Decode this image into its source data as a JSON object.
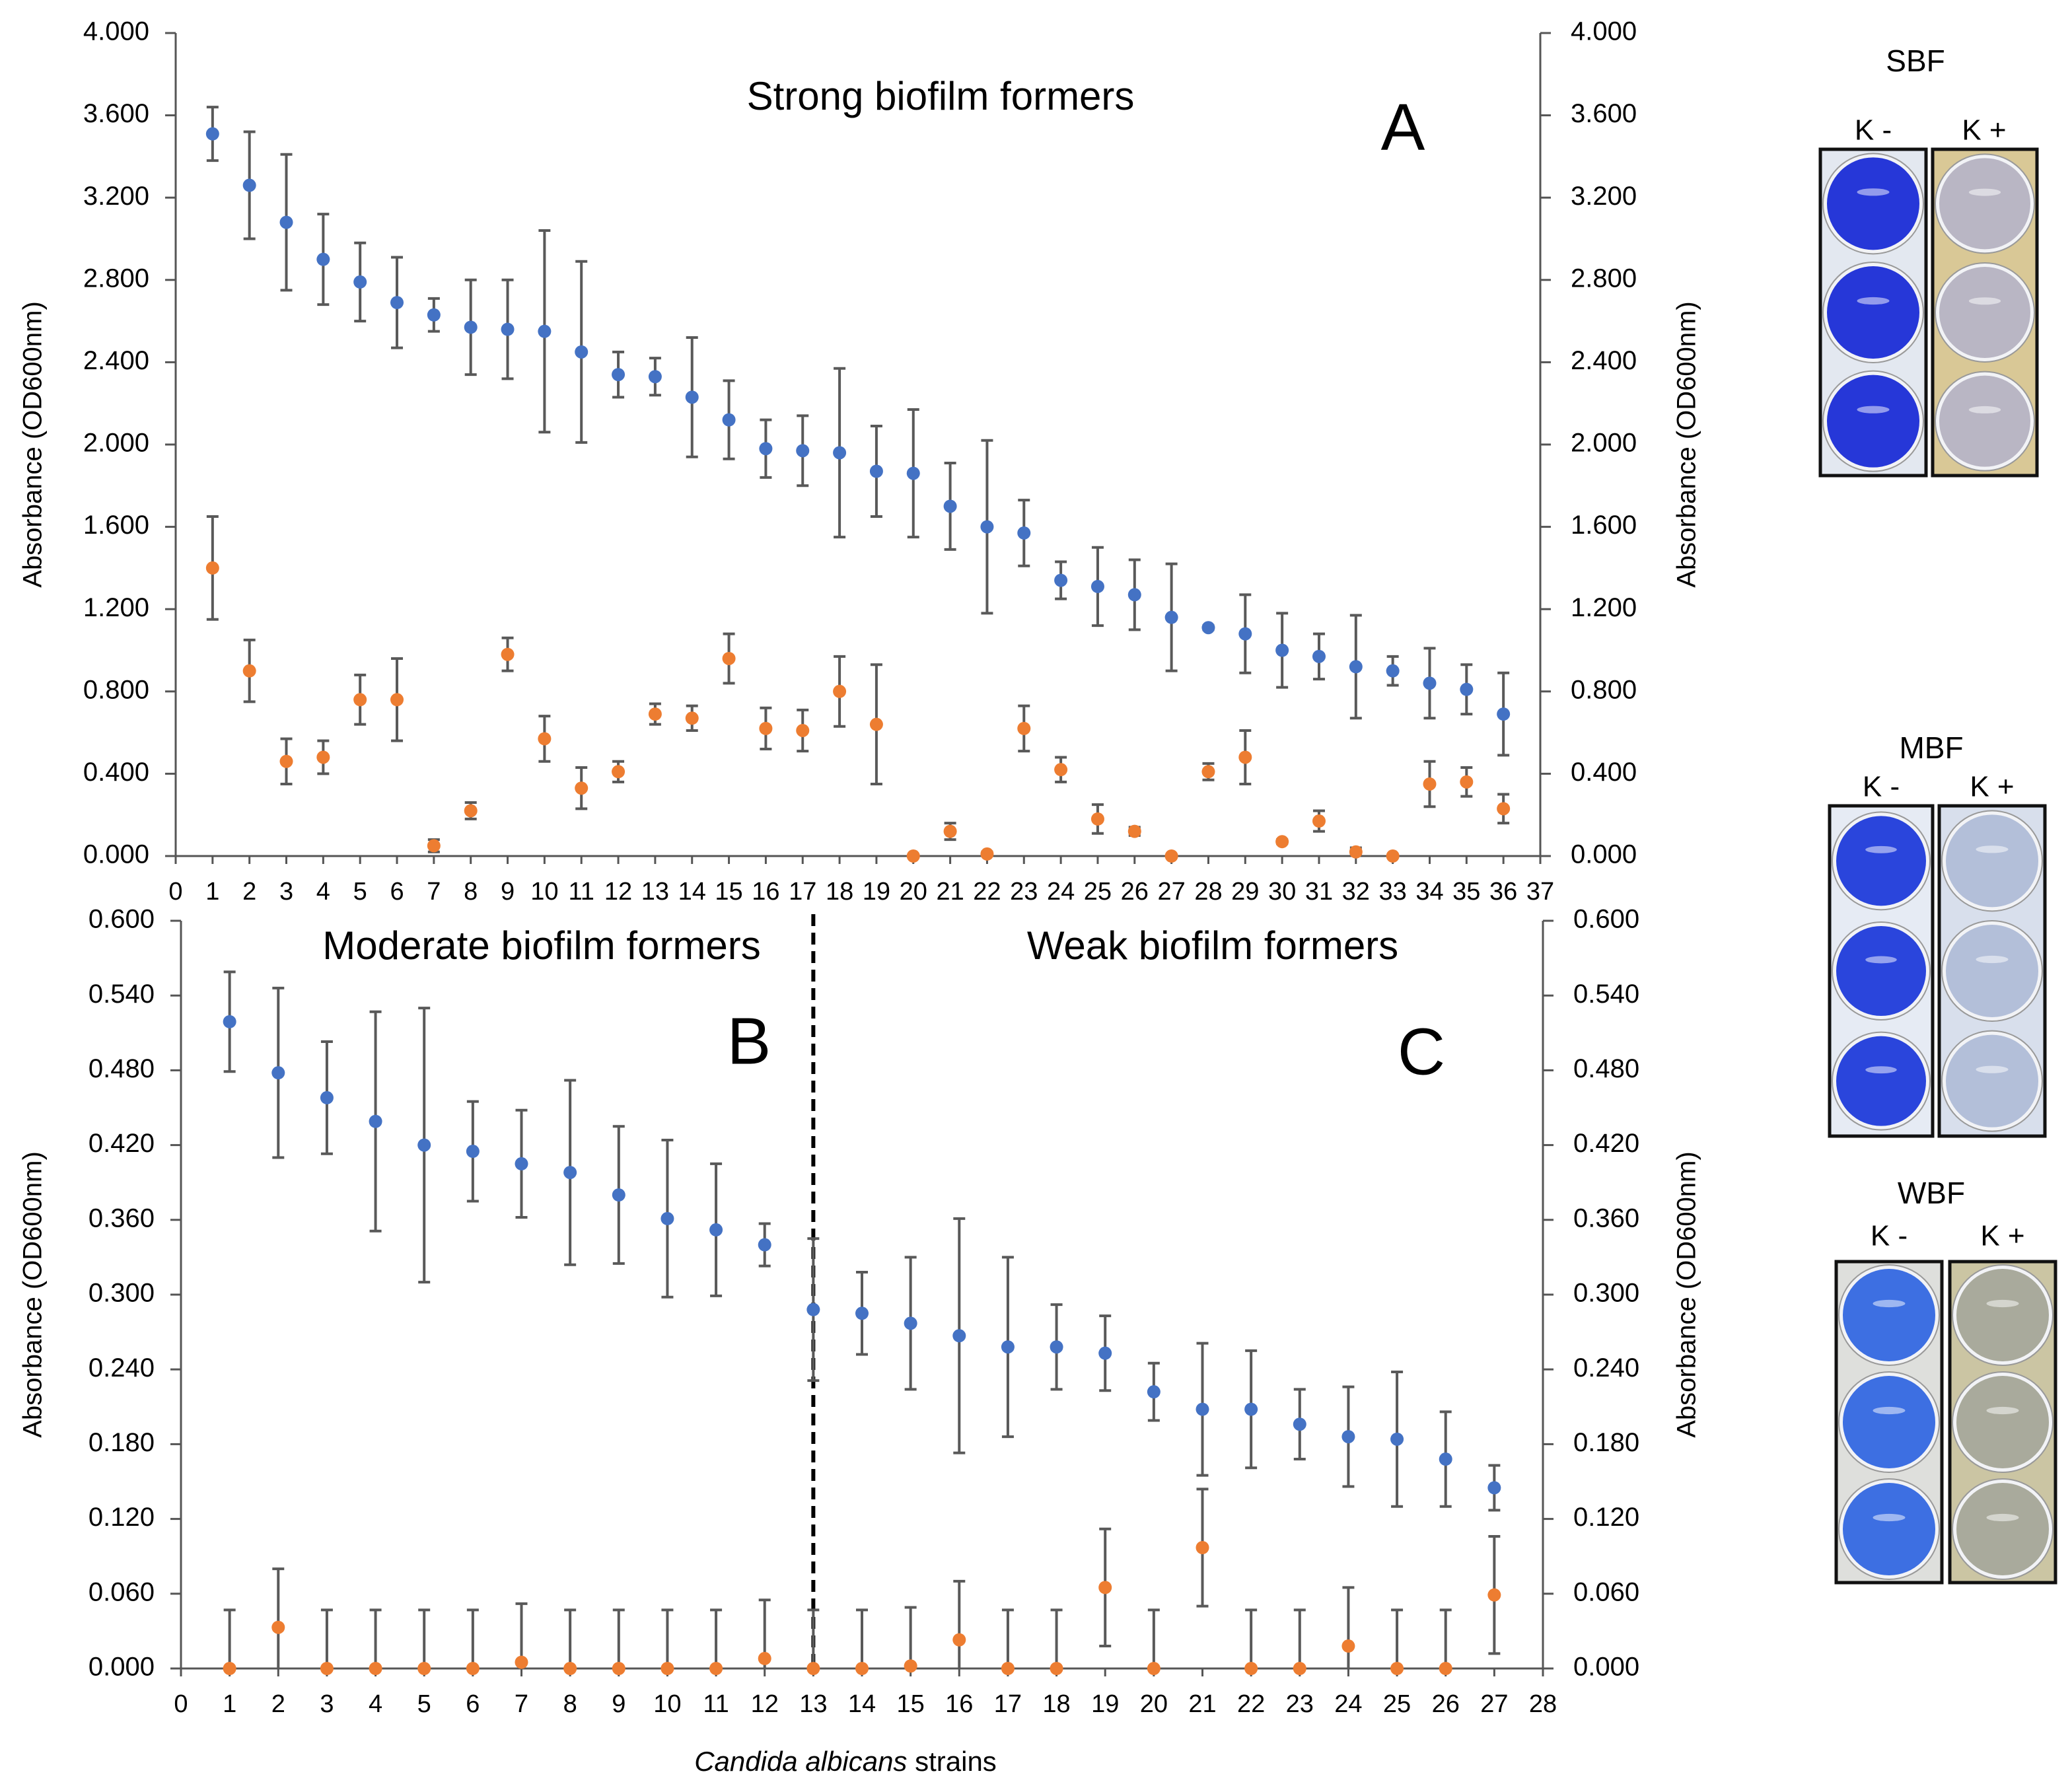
{
  "chart_data": [
    {
      "type": "scatter",
      "annotations": [
        "Strong biofilm formers",
        "A"
      ],
      "y_label": "Absorbance (OD600nm)",
      "y2_label": "Absorbance (OD600nm)",
      "x": [
        1,
        2,
        3,
        4,
        5,
        6,
        7,
        8,
        9,
        10,
        11,
        12,
        13,
        14,
        15,
        16,
        17,
        18,
        19,
        20,
        21,
        22,
        23,
        24,
        25,
        26,
        27,
        28,
        29,
        30,
        31,
        32,
        33,
        34,
        35,
        36
      ],
      "xlim": [
        0,
        37
      ],
      "xticks": [
        0,
        1,
        2,
        3,
        4,
        5,
        6,
        7,
        8,
        9,
        10,
        11,
        12,
        13,
        14,
        15,
        16,
        17,
        18,
        19,
        20,
        21,
        22,
        23,
        24,
        25,
        26,
        27,
        28,
        29,
        30,
        31,
        32,
        33,
        34,
        35,
        36,
        37
      ],
      "ylim": [
        0,
        4
      ],
      "yticks": [
        {
          "value": 0,
          "label": "0.000"
        },
        {
          "value": 0.4,
          "label": "0.400"
        },
        {
          "value": 0.8,
          "label": "0.800"
        },
        {
          "value": 1.2,
          "label": "1.200"
        },
        {
          "value": 1.6,
          "label": "1.600"
        },
        {
          "value": 2,
          "label": "2.000"
        },
        {
          "value": 2.4,
          "label": "2.400"
        },
        {
          "value": 2.8,
          "label": "2.800"
        },
        {
          "value": 3.2,
          "label": "3.200"
        },
        {
          "value": 3.6,
          "label": "3.600"
        },
        {
          "value": 4,
          "label": "4.000"
        }
      ],
      "y2lim": [
        0,
        4
      ],
      "y2ticks": [
        {
          "value": 0,
          "label": "0.000"
        },
        {
          "value": 0.4,
          "label": "0.400"
        },
        {
          "value": 0.8,
          "label": "0.800"
        },
        {
          "value": 1.2,
          "label": "1.200"
        },
        {
          "value": 1.6,
          "label": "1.600"
        },
        {
          "value": 2,
          "label": "2.000"
        },
        {
          "value": 2.4,
          "label": "2.400"
        },
        {
          "value": 2.8,
          "label": "2.800"
        },
        {
          "value": 3.2,
          "label": "3.200"
        },
        {
          "value": 3.6,
          "label": "3.600"
        },
        {
          "value": 4,
          "label": "4.000"
        }
      ],
      "series": [
        {
          "color": "#4472c4",
          "values": [
            3.51,
            3.26,
            3.08,
            2.9,
            2.79,
            2.69,
            2.63,
            2.57,
            2.56,
            2.55,
            2.45,
            2.34,
            2.33,
            2.23,
            2.12,
            1.98,
            1.97,
            1.96,
            1.87,
            1.86,
            1.7,
            1.6,
            1.57,
            1.34,
            1.31,
            1.27,
            1.16,
            1.11,
            1.08,
            1.0,
            0.97,
            0.92,
            0.9,
            0.84,
            0.81,
            0.69
          ],
          "errors": [
            0.13,
            0.26,
            0.33,
            0.22,
            0.19,
            0.22,
            0.08,
            0.23,
            0.24,
            0.49,
            0.44,
            0.11,
            0.09,
            0.29,
            0.19,
            0.14,
            0.17,
            0.41,
            0.22,
            0.31,
            0.21,
            0.42,
            0.16,
            0.09,
            0.19,
            0.17,
            0.26,
            0.01,
            0.19,
            0.18,
            0.11,
            0.25,
            0.07,
            0.17,
            0.12,
            0.2
          ]
        },
        {
          "color": "#ed7d31",
          "values": [
            1.4,
            0.9,
            0.46,
            0.48,
            0.76,
            0.76,
            0.05,
            0.22,
            0.98,
            0.57,
            0.33,
            0.41,
            0.69,
            0.67,
            0.96,
            0.62,
            0.61,
            0.8,
            0.64,
            0,
            0.12,
            0.01,
            0.62,
            0.42,
            0.18,
            0.12,
            0,
            0.41,
            0.48,
            0.07,
            0.17,
            0.02,
            0,
            0.35,
            0.36,
            0.23
          ],
          "errors": [
            0.25,
            0.15,
            0.11,
            0.08,
            0.12,
            0.2,
            0.03,
            0.04,
            0.08,
            0.11,
            0.1,
            0.05,
            0.05,
            0.06,
            0.12,
            0.1,
            0.1,
            0.17,
            0.29,
            0,
            0.04,
            0.01,
            0.11,
            0.06,
            0.07,
            0.02,
            0,
            0.04,
            0.13,
            0.01,
            0.05,
            0.02,
            0,
            0.11,
            0.07,
            0.07
          ]
        }
      ]
    },
    {
      "type": "scatter",
      "annotations": [
        "Moderate biofilm formers",
        "B",
        "Weak biofilm formers",
        "C"
      ],
      "y_label": "Absorbance (OD600nm)",
      "y2_label": "Absorbance (OD600nm)",
      "x_label_italic": "Candida albicans",
      "x_label_rest": "strains",
      "divider_x": 13,
      "x": [
        1,
        2,
        3,
        4,
        5,
        6,
        7,
        8,
        9,
        10,
        11,
        12,
        13,
        14,
        15,
        16,
        17,
        18,
        19,
        20,
        21,
        22,
        23,
        24,
        25,
        26,
        27
      ],
      "xlim": [
        0,
        28
      ],
      "xticks": [
        0,
        1,
        2,
        3,
        4,
        5,
        6,
        7,
        8,
        9,
        10,
        11,
        12,
        13,
        14,
        15,
        16,
        17,
        18,
        19,
        20,
        21,
        22,
        23,
        24,
        25,
        26,
        27,
        28
      ],
      "ylim": [
        0,
        0.6
      ],
      "yticks": [
        {
          "value": 0,
          "label": "0.000"
        },
        {
          "value": 0.06,
          "label": "0.060"
        },
        {
          "value": 0.12,
          "label": "0.120"
        },
        {
          "value": 0.18,
          "label": "0.180"
        },
        {
          "value": 0.24,
          "label": "0.240"
        },
        {
          "value": 0.3,
          "label": "0.300"
        },
        {
          "value": 0.36,
          "label": "0.360"
        },
        {
          "value": 0.42,
          "label": "0.420"
        },
        {
          "value": 0.48,
          "label": "0.480"
        },
        {
          "value": 0.54,
          "label": "0.540"
        },
        {
          "value": 0.6,
          "label": "0.600"
        }
      ],
      "y2lim": [
        0,
        0.6
      ],
      "y2ticks": [
        {
          "value": 0,
          "label": "0.000"
        },
        {
          "value": 0.06,
          "label": "0.060"
        },
        {
          "value": 0.12,
          "label": "0.120"
        },
        {
          "value": 0.18,
          "label": "0.180"
        },
        {
          "value": 0.24,
          "label": "0.240"
        },
        {
          "value": 0.3,
          "label": "0.300"
        },
        {
          "value": 0.36,
          "label": "0.360"
        },
        {
          "value": 0.42,
          "label": "0.420"
        },
        {
          "value": 0.48,
          "label": "0.480"
        },
        {
          "value": 0.54,
          "label": "0.540"
        },
        {
          "value": 0.6,
          "label": "0.600"
        }
      ],
      "series": [
        {
          "color": "#4472c4",
          "values": [
            0.519,
            0.478,
            0.458,
            0.439,
            0.42,
            0.415,
            0.405,
            0.398,
            0.38,
            0.361,
            0.352,
            0.34,
            0.288,
            0.285,
            0.277,
            0.267,
            0.258,
            0.258,
            0.253,
            0.222,
            0.208,
            0.208,
            0.196,
            0.186,
            0.184,
            0.168,
            0.145
          ],
          "errors": [
            0.04,
            0.068,
            0.045,
            0.088,
            0.11,
            0.04,
            0.043,
            0.074,
            0.055,
            0.063,
            0.053,
            0.017,
            0.057,
            0.033,
            0.053,
            0.094,
            0.072,
            0.034,
            0.03,
            0.023,
            0.053,
            0.047,
            0.028,
            0.04,
            0.054,
            0.038,
            0.018
          ]
        },
        {
          "color": "#ed7d31",
          "values": [
            0,
            0.033,
            0,
            0,
            0,
            0,
            0.005,
            0,
            0,
            0,
            0,
            0.008,
            0,
            0,
            0.002,
            0.023,
            0,
            0,
            0.065,
            0,
            0.097,
            0,
            0,
            0.018,
            0,
            0,
            0.059
          ],
          "errors": [
            0.047,
            0.047,
            0.047,
            0.047,
            0.047,
            0.047,
            0.047,
            0.047,
            0.047,
            0.047,
            0.047,
            0.047,
            0.047,
            0.047,
            0.047,
            0.047,
            0.047,
            0.047,
            0.047,
            0.047,
            0.047,
            0.047,
            0.047,
            0.047,
            0.047,
            0.047,
            0.047
          ]
        }
      ]
    }
  ],
  "panels": [
    {
      "title": "SBF",
      "labels": [
        "K -",
        "K +"
      ]
    },
    {
      "title": "MBF",
      "labels": [
        "K -",
        "K +"
      ]
    },
    {
      "title": "WBF",
      "labels": [
        "K -",
        "K +"
      ]
    }
  ]
}
